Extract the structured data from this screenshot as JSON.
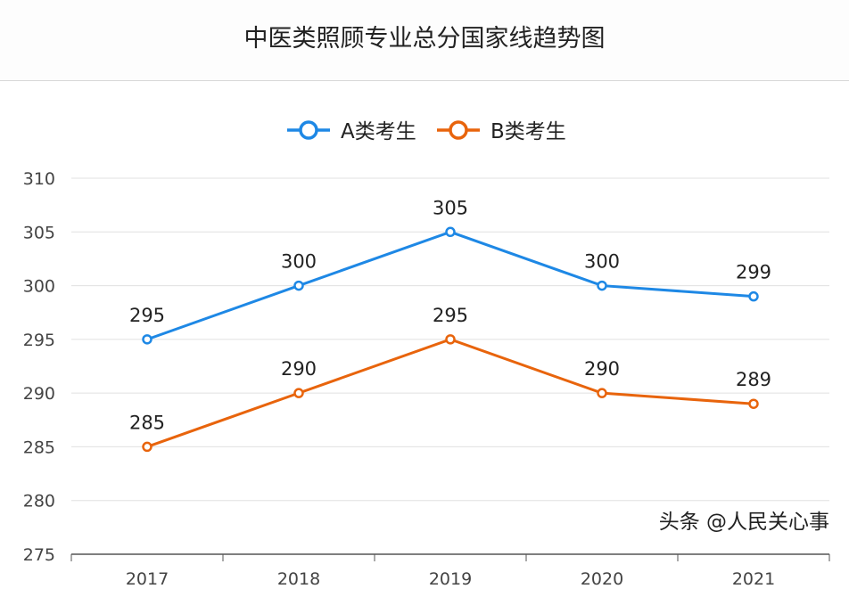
{
  "chart_data": {
    "type": "line",
    "title": "中医类照顾专业总分国家线趋势图",
    "categories": [
      "2017",
      "2018",
      "2019",
      "2020",
      "2021"
    ],
    "series": [
      {
        "name": "A类考生",
        "values": [
          295,
          300,
          305,
          300,
          299
        ],
        "color": "#1e88e5"
      },
      {
        "name": "B类考生",
        "values": [
          285,
          290,
          295,
          290,
          289
        ],
        "color": "#e8640c"
      }
    ],
    "ylim": [
      275,
      310
    ],
    "yticks": [
      275,
      280,
      285,
      290,
      295,
      300,
      305,
      310
    ],
    "grid": true,
    "legend": "top-center",
    "data_labels": true
  },
  "watermark": "头条 @人民关心事"
}
